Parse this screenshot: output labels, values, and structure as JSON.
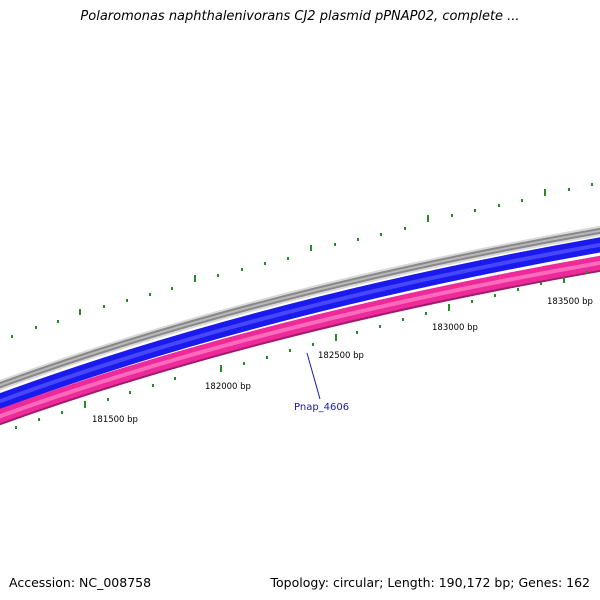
{
  "title": "Polaromonas naphthalenivorans CJ2 plasmid pPNAP02, complete ...",
  "footer": {
    "accession": "Accession: NC_008758",
    "summary": "Topology: circular; Length: 190,172 bp; Genes: 162"
  },
  "map": {
    "ticks": [
      {
        "label": "181500 bp"
      },
      {
        "label": "182000 bp"
      },
      {
        "label": "182500 bp"
      },
      {
        "label": "183000 bp"
      },
      {
        "label": "183500 bp"
      }
    ],
    "gene": {
      "label": "Pnap_4606"
    },
    "colors": {
      "backbone": "#888888",
      "forward_track": "#1a1aee",
      "reverse_track": "#ee2a9a",
      "tick_marks": "#2a8a2a",
      "gene_label": "#1a1aa6"
    }
  }
}
